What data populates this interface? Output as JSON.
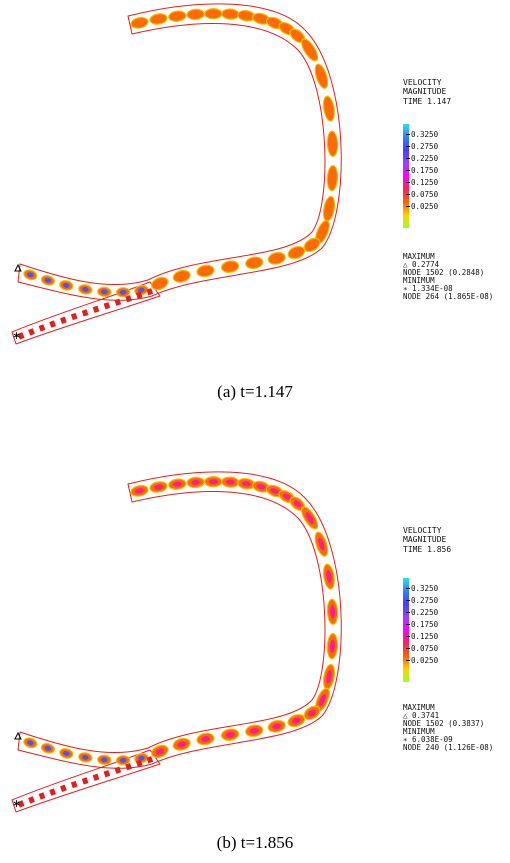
{
  "panels": [
    {
      "caption": "(a)  t=1.147",
      "legend": {
        "title_line1": "VELOCITY",
        "title_line2": "MAGNITUDE",
        "time_label": "TIME",
        "time_value": "1.147",
        "ticks": [
          "0.3250",
          "0.2750",
          "0.2250",
          "0.1750",
          "0.1250",
          "0.0750",
          "0.0250"
        ],
        "max_label": "MAXIMUM",
        "max_value": "0.2774",
        "max_node": "NODE 1502 (0.2848)",
        "min_label": "MINIMUM",
        "min_value": "1.334E-08",
        "min_node": "NODE 264 (1.865E-08)"
      }
    },
    {
      "caption": "(b)  t=1.856",
      "legend": {
        "title_line1": "VELOCITY",
        "title_line2": "MAGNITUDE",
        "time_label": "TIME",
        "time_value": "1.856",
        "ticks": [
          "0.3250",
          "0.2750",
          "0.2250",
          "0.1750",
          "0.1250",
          "0.0750",
          "0.0250"
        ],
        "max_label": "MAXIMUM",
        "max_value": "0.3741",
        "max_node": "NODE 1502 (0.3837)",
        "min_label": "MINIMUM",
        "min_value": "6.038E-09",
        "min_node": "NODE 240 (1.126E-08)"
      }
    }
  ],
  "symbols": {
    "max_marker": "△",
    "min_marker": "∗"
  },
  "colors": {
    "outline": "#e02020",
    "cell_fill": "#ff6a00",
    "cell_edge": "#e8c400",
    "cell_core_b": "#ff1c8c",
    "cell_blue": "#5050ff",
    "colorbar": [
      "#30e0e0",
      "#3080ff",
      "#4040ff",
      "#a040ff",
      "#ff00ff",
      "#ff2060",
      "#ff6000",
      "#ffd000",
      "#a0ff20"
    ]
  }
}
